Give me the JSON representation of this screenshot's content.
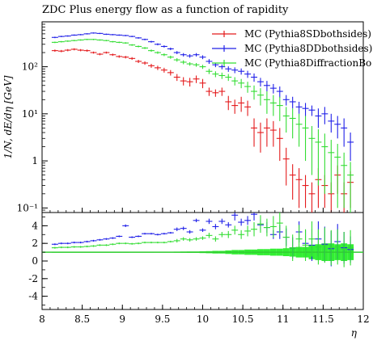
{
  "chart_data": {
    "type": "scatter",
    "title": "ZDC Plus energy flow as a function of rapidity",
    "xlabel": "η",
    "ylabel": "1/N, dE/dη [GeV]",
    "xlim": [
      8.0,
      12.0
    ],
    "xticks": [
      "8",
      "8.5",
      "9",
      "9.5",
      "10",
      "10.5",
      "11",
      "11.5",
      "12"
    ],
    "xtick_values": [
      8.0,
      8.5,
      9.0,
      9.5,
      10.0,
      10.5,
      11.0,
      11.5,
      12.0
    ],
    "main_panel": {
      "yscale": "log",
      "ylim": [
        0.08,
        900
      ],
      "yticks": [
        "10⁻¹",
        "1",
        "10¹",
        "10²"
      ],
      "ytick_values": [
        0.1,
        1,
        10,
        100
      ]
    },
    "ratio_panel": {
      "ylim": [
        -5.5,
        5.5
      ],
      "yticks": [
        "4",
        "2",
        "0",
        "-2",
        "-4"
      ],
      "ytick_values": [
        4,
        2,
        0,
        -2,
        -4
      ],
      "reference_line": 1
    },
    "legend_position": "top-right",
    "bin_width": 0.08,
    "series": [
      {
        "name": "MC (Pythia8SDbothsides)",
        "color": "#e41a1c",
        "x": [
          8.16,
          8.24,
          8.32,
          8.4,
          8.48,
          8.56,
          8.64,
          8.72,
          8.8,
          8.88,
          8.96,
          9.04,
          9.12,
          9.2,
          9.28,
          9.36,
          9.44,
          9.52,
          9.6,
          9.68,
          9.76,
          9.84,
          9.92,
          10.0,
          10.08,
          10.16,
          10.24,
          10.32,
          10.4,
          10.48,
          10.56,
          10.64,
          10.72,
          10.8,
          10.88,
          10.96,
          11.04,
          11.12,
          11.2,
          11.28,
          11.36,
          11.44,
          11.52,
          11.6,
          11.68,
          11.76,
          11.84
        ],
        "y": [
          220,
          215,
          225,
          235,
          225,
          220,
          200,
          185,
          200,
          180,
          165,
          160,
          150,
          130,
          120,
          105,
          95,
          85,
          75,
          60,
          50,
          48,
          55,
          45,
          30,
          28,
          30,
          18,
          15,
          17,
          14,
          5,
          4,
          5,
          4.5,
          3,
          1.1,
          0.5,
          0.4,
          0.3,
          0.2,
          0.4,
          0.3,
          0.2,
          0.5,
          0.2,
          0.35
        ],
        "yerr": [
          12,
          12,
          12,
          12,
          12,
          12,
          10,
          10,
          10,
          10,
          10,
          10,
          10,
          10,
          10,
          10,
          10,
          10,
          10,
          10,
          10,
          10,
          10,
          10,
          6,
          5,
          6,
          6,
          5,
          6,
          5,
          3,
          2.5,
          3,
          2.5,
          2,
          0.8,
          0.35,
          0.3,
          0.2,
          0.15,
          0.3,
          0.2,
          0.15,
          0.3,
          0.15,
          0.25
        ]
      },
      {
        "name": "MC (Pythia8DDbothsides)",
        "color": "#2020e8",
        "x": [
          8.16,
          8.24,
          8.32,
          8.4,
          8.48,
          8.56,
          8.64,
          8.72,
          8.8,
          8.88,
          8.96,
          9.04,
          9.12,
          9.2,
          9.28,
          9.36,
          9.44,
          9.52,
          9.6,
          9.68,
          9.76,
          9.84,
          9.92,
          10.0,
          10.08,
          10.16,
          10.24,
          10.32,
          10.4,
          10.48,
          10.56,
          10.64,
          10.72,
          10.8,
          10.88,
          10.96,
          11.04,
          11.12,
          11.2,
          11.28,
          11.36,
          11.44,
          11.52,
          11.6,
          11.68,
          11.76,
          11.84
        ],
        "y": [
          420,
          440,
          450,
          470,
          480,
          500,
          520,
          510,
          490,
          480,
          470,
          460,
          440,
          410,
          380,
          340,
          300,
          270,
          240,
          200,
          180,
          170,
          180,
          160,
          130,
          110,
          100,
          90,
          85,
          80,
          70,
          60,
          48,
          40,
          35,
          30,
          20,
          18,
          14,
          13,
          12,
          9,
          10,
          7,
          6,
          5,
          2.5
        ],
        "yerr": [
          15,
          15,
          15,
          15,
          15,
          15,
          15,
          15,
          15,
          15,
          15,
          15,
          15,
          15,
          15,
          15,
          15,
          15,
          15,
          15,
          15,
          15,
          15,
          15,
          15,
          12,
          12,
          12,
          12,
          12,
          12,
          12,
          10,
          10,
          8,
          8,
          5,
          5,
          4,
          4,
          3,
          4,
          4,
          3,
          3,
          3,
          1.5
        ]
      },
      {
        "name": "MC (Pythia8DiffractionBo",
        "color": "#33dd33",
        "x": [
          8.16,
          8.24,
          8.32,
          8.4,
          8.48,
          8.56,
          8.64,
          8.72,
          8.8,
          8.88,
          8.96,
          9.04,
          9.12,
          9.2,
          9.28,
          9.36,
          9.44,
          9.52,
          9.6,
          9.68,
          9.76,
          9.84,
          9.92,
          10.0,
          10.08,
          10.16,
          10.24,
          10.32,
          10.4,
          10.48,
          10.56,
          10.64,
          10.72,
          10.8,
          10.88,
          10.96,
          11.04,
          11.12,
          11.2,
          11.28,
          11.36,
          11.44,
          11.52,
          11.6,
          11.68,
          11.76,
          11.84
        ],
        "y": [
          330,
          340,
          350,
          360,
          370,
          380,
          380,
          370,
          360,
          340,
          330,
          320,
          290,
          270,
          250,
          220,
          200,
          180,
          160,
          140,
          125,
          115,
          110,
          100,
          80,
          70,
          65,
          60,
          50,
          45,
          38,
          30,
          25,
          20,
          17,
          15,
          9,
          8,
          6,
          5,
          3,
          2.5,
          2,
          1.5,
          1.2,
          0.8,
          0.5
        ],
        "yerr": [
          12,
          12,
          12,
          12,
          12,
          12,
          12,
          12,
          12,
          12,
          12,
          12,
          12,
          12,
          12,
          12,
          12,
          12,
          12,
          12,
          12,
          10,
          10,
          10,
          10,
          10,
          10,
          10,
          10,
          10,
          10,
          10,
          10,
          10,
          8,
          8,
          5,
          5,
          4,
          4,
          2.5,
          2.2,
          1.8,
          1.3,
          1.1,
          0.7,
          0.45
        ]
      }
    ],
    "ratio_series": [
      {
        "name": "MC (Pythia8DDbothsides)",
        "color": "#2020e8",
        "x": [
          8.16,
          8.24,
          8.32,
          8.4,
          8.48,
          8.56,
          8.64,
          8.72,
          8.8,
          8.88,
          8.96,
          9.04,
          9.12,
          9.2,
          9.28,
          9.36,
          9.44,
          9.52,
          9.6,
          9.68,
          9.76,
          9.84,
          9.92,
          10.0,
          10.08,
          10.16,
          10.24,
          10.32,
          10.4,
          10.48,
          10.56,
          10.64,
          10.72,
          10.8,
          10.88,
          10.96,
          11.04,
          11.12,
          11.2,
          11.28,
          11.36,
          11.44,
          11.52,
          11.6,
          11.68,
          11.76,
          11.84
        ],
        "y": [
          1.9,
          2.0,
          2.0,
          2.1,
          2.1,
          2.2,
          2.3,
          2.4,
          2.5,
          2.6,
          2.8,
          4.0,
          2.7,
          2.8,
          3.1,
          3.1,
          3.0,
          3.1,
          3.2,
          3.6,
          3.7,
          3.3,
          4.6,
          3.5,
          4.5,
          3.9,
          4.5,
          4.1,
          5.2,
          4.4,
          4.6,
          5.3,
          4.1,
          3.8,
          3.0,
          3.3,
          2.7,
          1.5,
          3.3,
          2.0,
          1.8,
          2.5,
          1.9,
          1.4,
          2.2,
          1.5,
          1.3
        ],
        "yerr": [
          0.1,
          0.1,
          0.1,
          0.1,
          0.1,
          0.1,
          0.1,
          0.1,
          0.1,
          0.1,
          0.1,
          0.15,
          0.1,
          0.1,
          0.1,
          0.1,
          0.1,
          0.1,
          0.1,
          0.2,
          0.2,
          0.2,
          0.2,
          0.2,
          0.3,
          0.3,
          0.3,
          0.3,
          0.6,
          0.4,
          0.5,
          0.7,
          0.6,
          0.6,
          0.5,
          0.8,
          1.0,
          1.2,
          1.2,
          1.5,
          1.8,
          2.0,
          2.0,
          2.0,
          2.0,
          1.8,
          1.5
        ]
      },
      {
        "name": "MC (Pythia8DiffractionBo",
        "color": "#33dd33",
        "x": [
          8.16,
          8.24,
          8.32,
          8.4,
          8.48,
          8.56,
          8.64,
          8.72,
          8.8,
          8.88,
          8.96,
          9.04,
          9.12,
          9.2,
          9.28,
          9.36,
          9.44,
          9.52,
          9.6,
          9.68,
          9.76,
          9.84,
          9.92,
          10.0,
          10.08,
          10.16,
          10.24,
          10.32,
          10.4,
          10.48,
          10.56,
          10.64,
          10.72,
          10.8,
          10.88,
          10.96,
          11.04,
          11.12,
          11.2,
          11.28,
          11.36,
          11.44,
          11.52,
          11.6,
          11.68,
          11.76,
          11.84
        ],
        "y": [
          1.5,
          1.55,
          1.55,
          1.6,
          1.6,
          1.65,
          1.7,
          1.8,
          1.8,
          1.9,
          2.0,
          2.0,
          1.95,
          2.0,
          2.1,
          2.1,
          2.1,
          2.1,
          2.2,
          2.3,
          2.5,
          2.4,
          2.5,
          2.6,
          2.9,
          2.5,
          3.0,
          3.0,
          3.5,
          3.0,
          3.4,
          3.6,
          4.2,
          3.8,
          3.9,
          4.3,
          2.7,
          1.5,
          2.5,
          1.8,
          2.5,
          1.6,
          1.8,
          1.5,
          1.6,
          1.3,
          1.5
        ],
        "yerr": [
          0.1,
          0.1,
          0.1,
          0.1,
          0.1,
          0.1,
          0.1,
          0.1,
          0.1,
          0.1,
          0.1,
          0.1,
          0.1,
          0.1,
          0.1,
          0.1,
          0.1,
          0.1,
          0.1,
          0.2,
          0.2,
          0.2,
          0.2,
          0.2,
          0.3,
          0.3,
          0.3,
          0.4,
          0.5,
          0.5,
          0.6,
          0.8,
          1.0,
          1.0,
          1.2,
          1.2,
          1.3,
          1.5,
          1.6,
          1.8,
          2.0,
          2.0,
          2.0,
          2.0,
          2.0,
          2.0,
          2.0
        ]
      }
    ],
    "reference_band": {
      "color": "#33ee33",
      "x": [
        8.16,
        8.24,
        8.32,
        8.4,
        8.48,
        8.56,
        8.64,
        8.72,
        8.8,
        8.88,
        8.96,
        9.04,
        9.12,
        9.2,
        9.28,
        9.36,
        9.44,
        9.52,
        9.6,
        9.68,
        9.76,
        9.84,
        9.92,
        10.0,
        10.08,
        10.16,
        10.24,
        10.32,
        10.4,
        10.48,
        10.56,
        10.64,
        10.72,
        10.8,
        10.88,
        10.96,
        11.04,
        11.12,
        11.2,
        11.28,
        11.36,
        11.44,
        11.52,
        11.6,
        11.68,
        11.76,
        11.84
      ],
      "half_width": [
        0.03,
        0.03,
        0.03,
        0.03,
        0.03,
        0.03,
        0.03,
        0.03,
        0.03,
        0.03,
        0.03,
        0.03,
        0.04,
        0.04,
        0.04,
        0.04,
        0.05,
        0.05,
        0.05,
        0.06,
        0.07,
        0.08,
        0.08,
        0.1,
        0.12,
        0.15,
        0.15,
        0.2,
        0.25,
        0.25,
        0.3,
        0.3,
        0.35,
        0.35,
        0.4,
        0.4,
        0.45,
        0.5,
        0.6,
        0.6,
        0.8,
        0.9,
        1.0,
        1.0,
        0.9,
        1.0,
        0.9
      ]
    }
  }
}
